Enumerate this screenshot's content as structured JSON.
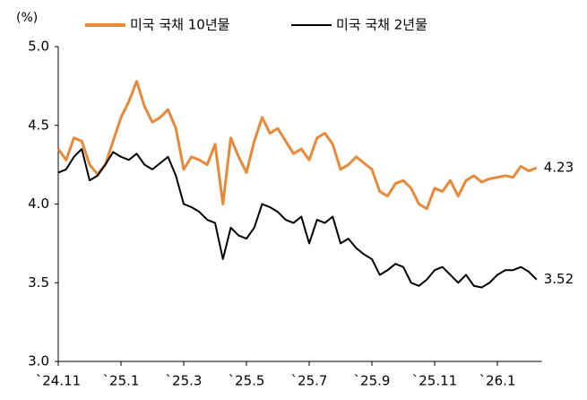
{
  "chart_data": {
    "type": "line",
    "y_label": "(%)",
    "categories": [
      "`24.11",
      null,
      null,
      null,
      null,
      null,
      null,
      null,
      "`25.1",
      null,
      null,
      null,
      null,
      null,
      null,
      null,
      "`25.3",
      null,
      null,
      null,
      null,
      null,
      null,
      null,
      "`25.5",
      null,
      null,
      null,
      null,
      null,
      null,
      null,
      "`25.7",
      null,
      null,
      null,
      null,
      null,
      null,
      null,
      "`25.9",
      null,
      null,
      null,
      null,
      null,
      null,
      null,
      "`25.11",
      null,
      null,
      null,
      null,
      null,
      null,
      null,
      "`26.1",
      null,
      null,
      null,
      null,
      null
    ],
    "series": [
      {
        "name": "미국 국채 10년물",
        "color": "#e8893a",
        "values": [
          4.35,
          4.28,
          4.42,
          4.4,
          4.25,
          4.19,
          4.25,
          4.4,
          4.55,
          4.65,
          4.78,
          4.62,
          4.52,
          4.55,
          4.6,
          4.48,
          4.22,
          4.3,
          4.28,
          4.25,
          4.38,
          4.0,
          4.42,
          4.3,
          4.2,
          4.4,
          4.55,
          4.45,
          4.48,
          4.4,
          4.32,
          4.35,
          4.28,
          4.42,
          4.45,
          4.38,
          4.22,
          4.25,
          4.3,
          4.26,
          4.22,
          4.08,
          4.05,
          4.13,
          4.15,
          4.1,
          4.0,
          3.97,
          4.1,
          4.08,
          4.15,
          4.05,
          4.15,
          4.18,
          4.14,
          4.16,
          4.17,
          4.18,
          4.17,
          4.24,
          4.21,
          4.23
        ]
      },
      {
        "name": "미국 국채 2년물",
        "color": "#000000",
        "values": [
          4.2,
          4.22,
          4.3,
          4.35,
          4.15,
          4.18,
          4.25,
          4.33,
          4.3,
          4.28,
          4.32,
          4.25,
          4.22,
          4.26,
          4.3,
          4.18,
          4.0,
          3.98,
          3.95,
          3.9,
          3.88,
          3.65,
          3.85,
          3.8,
          3.78,
          3.85,
          4.0,
          3.98,
          3.95,
          3.9,
          3.88,
          3.92,
          3.75,
          3.9,
          3.88,
          3.92,
          3.75,
          3.78,
          3.72,
          3.68,
          3.65,
          3.55,
          3.58,
          3.62,
          3.6,
          3.5,
          3.48,
          3.52,
          3.58,
          3.6,
          3.55,
          3.5,
          3.55,
          3.48,
          3.47,
          3.5,
          3.55,
          3.58,
          3.58,
          3.6,
          3.57,
          3.52
        ]
      }
    ],
    "ylim": [
      3.0,
      5.0
    ],
    "yticks": [
      {
        "value": 3.0,
        "label": "3.0"
      },
      3.5,
      {
        "value": 4.0,
        "label": "4.0"
      },
      4.5,
      {
        "value": 5.0,
        "label": "5.0"
      }
    ],
    "grid": false,
    "legend": "top"
  }
}
